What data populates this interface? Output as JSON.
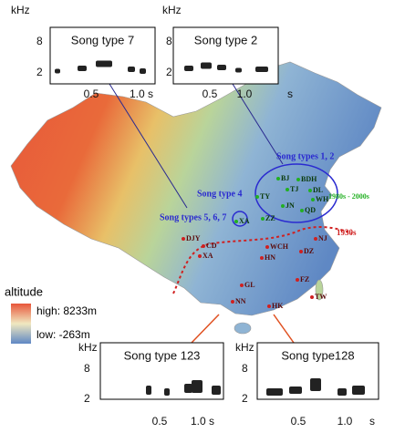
{
  "insets": [
    {
      "title": "Song type 7",
      "y_unit": "kHz",
      "y_ticks": [
        "8",
        "2"
      ],
      "x_ticks": [
        "0.5",
        "1.0 s"
      ]
    },
    {
      "title": "Song type 2",
      "y_unit": "kHz",
      "y_ticks": [
        "8",
        "2"
      ],
      "x_ticks": [
        "0.5",
        "1.0",
        "s"
      ]
    },
    {
      "title": "Song type 123",
      "y_unit": "kHz",
      "y_ticks": [
        "8",
        "2"
      ],
      "x_ticks": [
        "0.5",
        "1.0 s"
      ]
    },
    {
      "title": "Song type128",
      "y_unit": "kHz",
      "y_ticks": [
        "8",
        "2"
      ],
      "x_ticks": [
        "0.5",
        "1.0",
        "s"
      ]
    }
  ],
  "map": {
    "regions": [
      "Song types 1, 2",
      "Song type 4",
      "Song types 5, 6, 7"
    ],
    "periods": [
      "1980s - 2000s",
      "1930s"
    ],
    "sites": [
      "BJ",
      "BDH",
      "TJ",
      "DL",
      "TY",
      "WH",
      "JN",
      "QD",
      "ZZ",
      "XA",
      "DJY",
      "CD",
      "XA",
      "WCH",
      "NJ",
      "HN",
      "DZ",
      "FZ",
      "GL",
      "TW",
      "NN",
      "HK"
    ]
  },
  "legend": {
    "title": "altitude",
    "high": "high: 8233m",
    "low": "low: -263m"
  }
}
